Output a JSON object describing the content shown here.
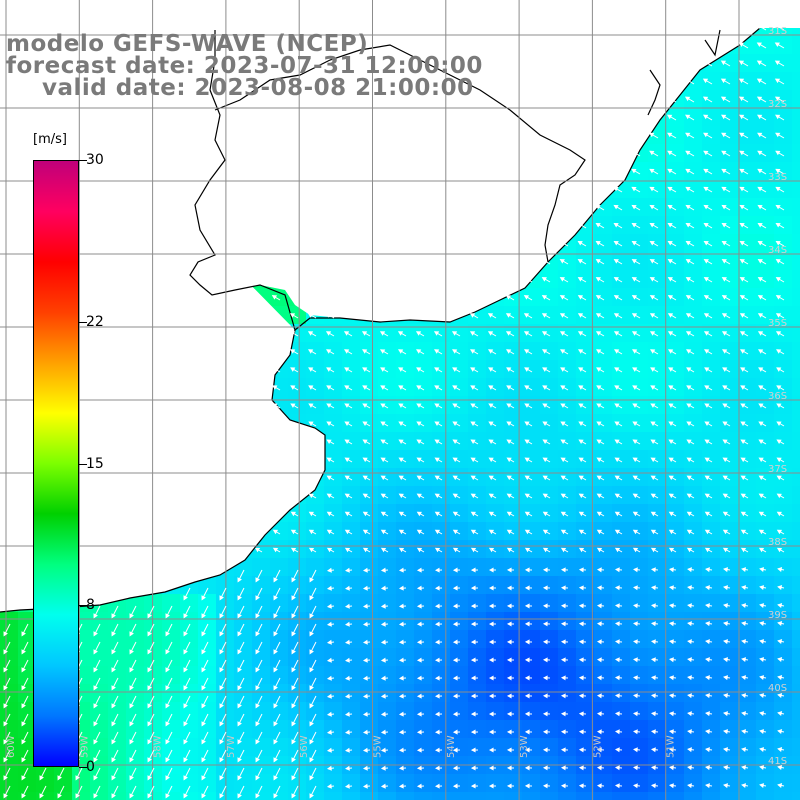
{
  "title": {
    "line1": "modelo GEFS-WAVE (NCEP)",
    "line2": "forecast date: 2023-07-31 12:00:00",
    "line3": "valid date: 2023-08-08 21:00:00"
  },
  "colorbar": {
    "unit": "[m/s]",
    "min": 0,
    "max": 30,
    "ticks": [
      {
        "label": "30",
        "value": 30
      },
      {
        "label": "22",
        "value": 22
      },
      {
        "label": "15",
        "value": 15
      },
      {
        "label": "8",
        "value": 8
      },
      {
        "label": "0",
        "value": 0
      }
    ],
    "colors": [
      "#0000ff",
      "#0077ff",
      "#00c8ff",
      "#00ffee",
      "#00ff80",
      "#00d000",
      "#7cff00",
      "#ffff00",
      "#ffa000",
      "#ff4000",
      "#ff0000",
      "#ff0060",
      "#c0007a"
    ]
  },
  "map": {
    "lon_range": [
      -60,
      -49
    ],
    "lat_range": [
      -41.5,
      -30.5
    ],
    "lon_labels": [
      "60W",
      "59W",
      "58W",
      "57W",
      "56W",
      "55W",
      "54W",
      "53W",
      "52W",
      "51W"
    ],
    "lat_labels": [
      "31S",
      "32S",
      "33S",
      "34S",
      "35S",
      "36S",
      "37S",
      "38S",
      "39S",
      "40S",
      "41S"
    ],
    "land_color": "#ffffff",
    "grid_color": "#8c8c8c"
  }
}
